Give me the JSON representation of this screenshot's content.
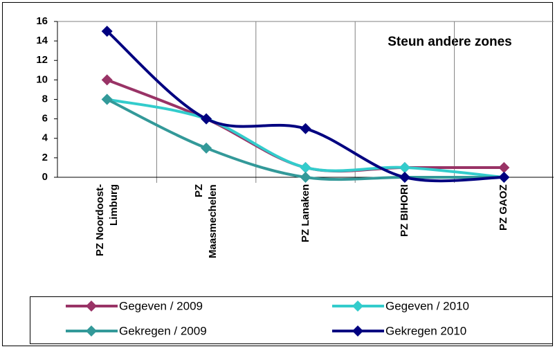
{
  "chart_data": {
    "type": "line",
    "title": "Steun andere zones",
    "categories": [
      "PZ Noordoost-\nLimburg",
      "PZ\nMaasmechelen",
      "PZ Lanaken",
      "PZ BIHORI",
      "PZ GAOZ"
    ],
    "series": [
      {
        "name": "Gegeven / 2009",
        "color": "#993366",
        "values": [
          10,
          6,
          1,
          1,
          1
        ]
      },
      {
        "name": "Gegeven / 2010",
        "color": "#33CCCC",
        "values": [
          8,
          6,
          1,
          1,
          0
        ]
      },
      {
        "name": "Gekregen / 2009",
        "color": "#339999",
        "values": [
          8,
          3,
          0,
          0,
          0
        ]
      },
      {
        "name": "Gekregen 2010",
        "color": "#000080",
        "values": [
          15,
          6,
          5,
          0,
          0
        ]
      }
    ],
    "ylim": [
      0,
      16
    ],
    "yticks": [
      0,
      2,
      4,
      6,
      8,
      10,
      12,
      14,
      16
    ],
    "smooth": true
  }
}
